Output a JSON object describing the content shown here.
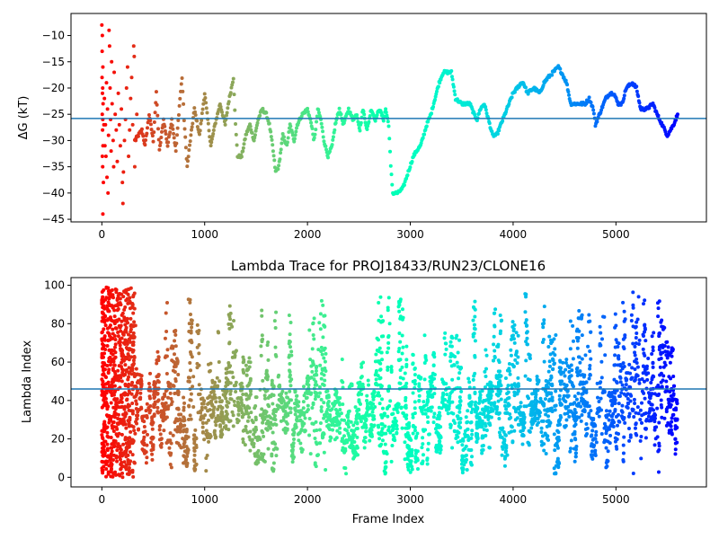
{
  "chart_data": [
    {
      "type": "scatter",
      "title": "",
      "xlabel": "",
      "ylabel": "ΔG (kT)",
      "xlim": [
        -300,
        5880
      ],
      "ylim": [
        -45.5,
        -5.8
      ],
      "xticks": [
        0,
        1000,
        2000,
        3000,
        4000,
        5000
      ],
      "yticks": [
        -45,
        -40,
        -35,
        -30,
        -25,
        -20,
        -15,
        -10
      ],
      "hline": -25.8,
      "hline_color": "#1f77b4",
      "grid": false,
      "colormap": "rainbow (reversed: red at frame 0, violet at the last frame)",
      "max_frame": 5600,
      "trace_points": [
        [
          320,
          -30
        ],
        [
          390,
          -28
        ],
        [
          420,
          -31
        ],
        [
          460,
          -25
        ],
        [
          500,
          -30
        ],
        [
          530,
          -21
        ],
        [
          560,
          -32
        ],
        [
          600,
          -26
        ],
        [
          640,
          -31
        ],
        [
          680,
          -26
        ],
        [
          720,
          -32
        ],
        [
          760,
          -22
        ],
        [
          780,
          -18
        ],
        [
          800,
          -26
        ],
        [
          830,
          -35
        ],
        [
          860,
          -30
        ],
        [
          900,
          -24
        ],
        [
          950,
          -29
        ],
        [
          1000,
          -21
        ],
        [
          1030,
          -26
        ],
        [
          1060,
          -31
        ],
        [
          1100,
          -27
        ],
        [
          1150,
          -23
        ],
        [
          1200,
          -27
        ],
        [
          1230,
          -23
        ],
        [
          1260,
          -20
        ],
        [
          1280,
          -18
        ],
        [
          1300,
          -27
        ],
        [
          1320,
          -33
        ],
        [
          1360,
          -33
        ],
        [
          1400,
          -29
        ],
        [
          1440,
          -27
        ],
        [
          1480,
          -30
        ],
        [
          1520,
          -26
        ],
        [
          1560,
          -24
        ],
        [
          1600,
          -25
        ],
        [
          1630,
          -27
        ],
        [
          1660,
          -31
        ],
        [
          1690,
          -36
        ],
        [
          1720,
          -35
        ],
        [
          1760,
          -29
        ],
        [
          1800,
          -31
        ],
        [
          1830,
          -27
        ],
        [
          1870,
          -30
        ],
        [
          1900,
          -27
        ],
        [
          1950,
          -25
        ],
        [
          2000,
          -24
        ],
        [
          2040,
          -27
        ],
        [
          2060,
          -30
        ],
        [
          2080,
          -28
        ],
        [
          2100,
          -24
        ],
        [
          2130,
          -26
        ],
        [
          2160,
          -30
        ],
        [
          2200,
          -33
        ],
        [
          2240,
          -31
        ],
        [
          2270,
          -27
        ],
        [
          2310,
          -24
        ],
        [
          2350,
          -27
        ],
        [
          2400,
          -24
        ],
        [
          2440,
          -26
        ],
        [
          2480,
          -25
        ],
        [
          2510,
          -28
        ],
        [
          2540,
          -24
        ],
        [
          2580,
          -28
        ],
        [
          2620,
          -24
        ],
        [
          2660,
          -26
        ],
        [
          2700,
          -24
        ],
        [
          2740,
          -26
        ],
        [
          2760,
          -24
        ],
        [
          2790,
          -27
        ],
        [
          2810,
          -35
        ],
        [
          2830,
          -40
        ],
        [
          2880,
          -40
        ],
        [
          2930,
          -39
        ],
        [
          2980,
          -36
        ],
        [
          3030,
          -33
        ],
        [
          3060,
          -32
        ],
        [
          3100,
          -31
        ],
        [
          3130,
          -29
        ],
        [
          3160,
          -27
        ],
        [
          3200,
          -25
        ],
        [
          3240,
          -22
        ],
        [
          3280,
          -19
        ],
        [
          3320,
          -17
        ],
        [
          3400,
          -17
        ],
        [
          3440,
          -22
        ],
        [
          3500,
          -23
        ],
        [
          3580,
          -23
        ],
        [
          3620,
          -25
        ],
        [
          3650,
          -26
        ],
        [
          3680,
          -24
        ],
        [
          3720,
          -23
        ],
        [
          3760,
          -26
        ],
        [
          3800,
          -29
        ],
        [
          3840,
          -29
        ],
        [
          3880,
          -27
        ],
        [
          3920,
          -25
        ],
        [
          3960,
          -23
        ],
        [
          4000,
          -21
        ],
        [
          4040,
          -20
        ],
        [
          4080,
          -19
        ],
        [
          4100,
          -19
        ],
        [
          4140,
          -21
        ],
        [
          4200,
          -20
        ],
        [
          4260,
          -21
        ],
        [
          4300,
          -19
        ],
        [
          4340,
          -18
        ],
        [
          4390,
          -17
        ],
        [
          4440,
          -16
        ],
        [
          4470,
          -17
        ],
        [
          4520,
          -19
        ],
        [
          4560,
          -23
        ],
        [
          4700,
          -23
        ],
        [
          4740,
          -22
        ],
        [
          4780,
          -24
        ],
        [
          4800,
          -27
        ],
        [
          4840,
          -25
        ],
        [
          4900,
          -22
        ],
        [
          4940,
          -21
        ],
        [
          4980,
          -21
        ],
        [
          5020,
          -23
        ],
        [
          5060,
          -23
        ],
        [
          5100,
          -20
        ],
        [
          5160,
          -19
        ],
        [
          5200,
          -20
        ],
        [
          5240,
          -24
        ],
        [
          5300,
          -24
        ],
        [
          5360,
          -23
        ],
        [
          5400,
          -25
        ],
        [
          5450,
          -27
        ],
        [
          5500,
          -29
        ],
        [
          5560,
          -27
        ],
        [
          5600,
          -25
        ]
      ],
      "scatter_points": [
        [
          0,
          -8
        ],
        [
          5,
          -10
        ],
        [
          3,
          -13
        ],
        [
          10,
          -16
        ],
        [
          2,
          -18
        ],
        [
          8,
          -20
        ],
        [
          6,
          -21
        ],
        [
          12,
          -23
        ],
        [
          4,
          -25
        ],
        [
          9,
          -26
        ],
        [
          7,
          -28
        ],
        [
          11,
          -31
        ],
        [
          5,
          -33
        ],
        [
          8,
          -35
        ],
        [
          10,
          -44
        ],
        [
          15,
          -38
        ],
        [
          20,
          -27
        ],
        [
          25,
          -22
        ],
        [
          30,
          -31
        ],
        [
          35,
          -27
        ],
        [
          40,
          -33
        ],
        [
          45,
          -19
        ],
        [
          50,
          -37
        ],
        [
          55,
          -24
        ],
        [
          60,
          -40
        ],
        [
          65,
          -29
        ],
        [
          70,
          -9
        ],
        [
          75,
          -12
        ],
        [
          80,
          -20
        ],
        [
          85,
          -26
        ],
        [
          90,
          -32
        ],
        [
          95,
          -15
        ],
        [
          100,
          -23
        ],
        [
          110,
          -30
        ],
        [
          115,
          -35
        ],
        [
          120,
          -17
        ],
        [
          130,
          -25
        ],
        [
          140,
          -28
        ],
        [
          150,
          -34
        ],
        [
          160,
          -21
        ],
        [
          170,
          -27
        ],
        [
          180,
          -31
        ],
        [
          190,
          -24
        ],
        [
          200,
          -38
        ],
        [
          205,
          -42
        ],
        [
          210,
          -36
        ],
        [
          220,
          -30
        ],
        [
          230,
          -26
        ],
        [
          240,
          -20
        ],
        [
          250,
          -16
        ],
        [
          260,
          -33
        ],
        [
          270,
          -28
        ],
        [
          280,
          -22
        ],
        [
          290,
          -18
        ],
        [
          300,
          -27
        ],
        [
          310,
          -12
        ],
        [
          315,
          -14
        ],
        [
          320,
          -35
        ],
        [
          330,
          -30
        ],
        [
          340,
          -25
        ]
      ]
    },
    {
      "type": "scatter",
      "title": "Lambda Trace for PROJ18433/RUN23/CLONE16",
      "xlabel": "Frame Index",
      "ylabel": "Lambda Index",
      "xlim": [
        -300,
        5880
      ],
      "ylim": [
        -5,
        104
      ],
      "xticks": [
        0,
        1000,
        2000,
        3000,
        4000,
        5000
      ],
      "yticks": [
        0,
        20,
        40,
        60,
        80,
        100
      ],
      "hline": 46,
      "hline_color": "#1f77b4",
      "grid": false,
      "colormap": "rainbow (reversed: red at frame 0, violet at the last frame)",
      "max_frame": 5600,
      "lambda_range": [
        0,
        99
      ],
      "column_spacing_frames": 28
    }
  ]
}
